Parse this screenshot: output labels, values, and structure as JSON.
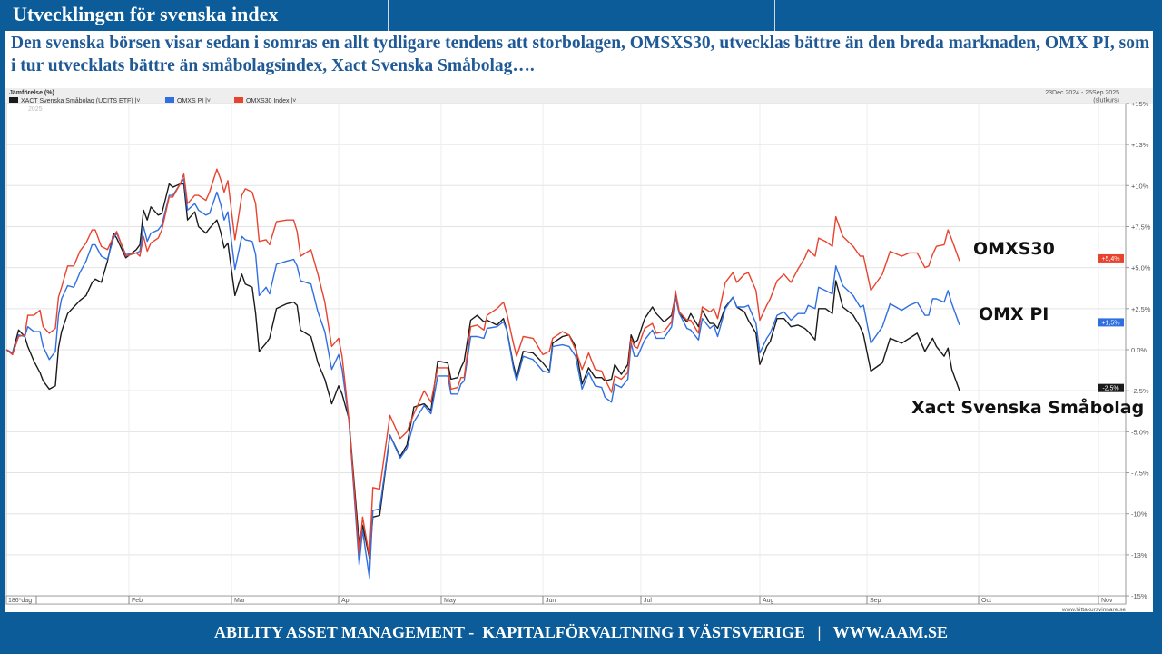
{
  "header": {
    "title": "Utvecklingen för svenska index"
  },
  "subtitle": "Den svenska börsen visar sedan i somras en allt tydligare tendens att storbolagen, OMSXS30, utvecklas bättre än den breda marknaden, OMX PI, som i tur utvecklats bättre än småbolagsindex, Xact Svenska Småbolag….",
  "annotations": {
    "omxs30": "OMXS30",
    "omxpi": "OMX PI",
    "xact": "Xact Svenska Småbolag"
  },
  "footer": {
    "text": "ABILITY ASSET MANAGEMENT -  KAPITALFÖRVALTNING I VÄSTSVERIGE   |   WWW.AAM.SE"
  },
  "chart_data": {
    "type": "line",
    "title": "Jämförelse (%)",
    "year_label": "2025",
    "period": "23Dec 2024 - 25Sep 2025",
    "period_note": "(slutkurs)",
    "period_days_label": "186*dag",
    "source": "www.hittakursvinnare.se",
    "x_tick_labels": [
      "Feb",
      "Mar",
      "Apr",
      "May",
      "Jun",
      "Jul",
      "Aug",
      "Sep",
      "Oct",
      "Nov"
    ],
    "y_ticks": [
      15,
      12.5,
      10,
      7.5,
      5,
      2.5,
      0,
      -2.5,
      -5,
      -7.5,
      -10,
      -12.5,
      -15
    ],
    "y_tick_labels": [
      "+15%",
      "+13%",
      "+10%",
      "+7.5%",
      "+5.0%",
      "+2.5%",
      "0.0%",
      "-2.5%",
      "-5.0%",
      "-7.5%",
      "-10%",
      "-13%",
      "-15%"
    ],
    "ylim": [
      -15,
      15
    ],
    "grid": true,
    "legend_position": "top-left",
    "x": [
      "2024-12-23",
      "2024-12-25",
      "2024-12-27",
      "2024-12-29",
      "2024-12-30",
      "2025-01-01",
      "2025-01-03",
      "2025-01-04",
      "2025-01-06",
      "2025-01-08",
      "2025-01-09",
      "2025-01-10",
      "2025-01-12",
      "2025-01-14",
      "2025-01-16",
      "2025-01-18",
      "2025-01-20",
      "2025-01-21",
      "2025-01-23",
      "2025-01-25",
      "2025-01-27",
      "2025-01-28",
      "2025-01-31",
      "2025-02-03",
      "2025-02-04",
      "2025-02-05",
      "2025-02-06",
      "2025-02-07",
      "2025-02-09",
      "2025-02-10",
      "2025-02-12",
      "2025-02-13",
      "2025-02-15",
      "2025-02-16",
      "2025-02-17",
      "2025-02-19",
      "2025-02-20",
      "2025-02-22",
      "2025-02-23",
      "2025-02-25",
      "2025-02-26",
      "2025-02-27",
      "2025-02-28",
      "2025-03-02",
      "2025-03-04",
      "2025-03-05",
      "2025-03-07",
      "2025-03-08",
      "2025-03-09",
      "2025-03-11",
      "2025-03-12",
      "2025-03-14",
      "2025-03-17",
      "2025-03-19",
      "2025-03-20",
      "2025-03-21",
      "2025-03-24",
      "2025-03-26",
      "2025-03-28",
      "2025-03-30",
      "2025-04-01",
      "2025-04-02",
      "2025-04-04",
      "2025-04-07",
      "2025-04-08",
      "2025-04-10",
      "2025-04-11",
      "2025-04-13",
      "2025-04-16",
      "2025-04-19",
      "2025-04-21",
      "2025-04-23",
      "2025-04-26",
      "2025-04-28",
      "2025-04-30",
      "2025-05-03",
      "2025-05-04",
      "2025-05-06",
      "2025-05-07",
      "2025-05-08",
      "2025-05-10",
      "2025-05-12",
      "2025-05-14",
      "2025-05-15",
      "2025-05-18",
      "2025-05-20",
      "2025-05-21",
      "2025-05-23",
      "2025-05-24",
      "2025-05-26",
      "2025-05-29",
      "2025-06-01",
      "2025-06-03",
      "2025-06-04",
      "2025-06-07",
      "2025-06-09",
      "2025-06-11",
      "2025-06-13",
      "2025-06-15",
      "2025-06-17",
      "2025-06-19",
      "2025-06-20",
      "2025-06-22",
      "2025-06-23",
      "2025-06-25",
      "2025-06-27",
      "2025-06-28",
      "2025-06-29",
      "2025-06-30",
      "2025-07-02",
      "2025-07-04",
      "2025-07-05",
      "2025-07-07",
      "2025-07-09",
      "2025-07-10",
      "2025-07-11",
      "2025-07-13",
      "2025-07-14",
      "2025-07-16",
      "2025-07-17",
      "2025-07-19",
      "2025-07-20",
      "2025-07-21",
      "2025-07-23",
      "2025-07-25",
      "2025-07-26",
      "2025-07-28",
      "2025-07-29",
      "2025-07-31",
      "2025-08-01",
      "2025-08-03",
      "2025-08-04",
      "2025-08-06",
      "2025-08-08",
      "2025-08-10",
      "2025-08-12",
      "2025-08-14",
      "2025-08-15",
      "2025-08-17",
      "2025-08-18",
      "2025-08-20",
      "2025-08-22",
      "2025-08-23",
      "2025-08-25",
      "2025-08-28",
      "2025-08-30",
      "2025-08-31",
      "2025-09-02",
      "2025-09-05",
      "2025-09-07",
      "2025-09-10",
      "2025-09-12",
      "2025-09-14",
      "2025-09-16",
      "2025-09-17",
      "2025-09-18",
      "2025-09-19",
      "2025-09-21",
      "2025-09-22",
      "2025-09-23",
      "2025-09-25"
    ],
    "series": [
      {
        "name": "XACT Svenska Småbolag (UCITS ETF)",
        "color": "#1a1a1a",
        "last_label": "-2,5%",
        "values": [
          0,
          -0.2,
          1.2,
          0.8,
          0.2,
          -0.7,
          -1.4,
          -1.9,
          -2.4,
          -2.2,
          0.1,
          1.1,
          2.2,
          2.6,
          3.0,
          3.3,
          4.1,
          4.3,
          4.1,
          5.4,
          7.1,
          6.8,
          5.6,
          6.1,
          6.4,
          8.5,
          7.9,
          8.7,
          8.2,
          8.3,
          10.1,
          9.9,
          10.1,
          10.1,
          7.9,
          8.4,
          7.5,
          7.1,
          7.4,
          7.9,
          7.2,
          6.2,
          6.5,
          3.3,
          4.6,
          4.0,
          3.8,
          2.2,
          -0.1,
          0.4,
          0.7,
          2.5,
          2.8,
          2.9,
          2.7,
          1.2,
          0.8,
          -0.8,
          -1.8,
          -3.3,
          -2.2,
          -2.7,
          -4.2,
          -11.8,
          -10.7,
          -12.7,
          -10.2,
          -10.1,
          -5.2,
          -6.5,
          -5.8,
          -3.5,
          -3.3,
          -3.7,
          -0.7,
          -0.8,
          -1.8,
          -1.7,
          -1.1,
          -0.7,
          1.8,
          2.1,
          1.7,
          1.8,
          1.5,
          1.9,
          1.2,
          -0.9,
          -1.7,
          -0.1,
          -0.2,
          -0.8,
          -1.3,
          0.4,
          0.8,
          0.9,
          0.2,
          -2.1,
          -1.1,
          -1.7,
          -1.7,
          -1.9,
          -1.8,
          -0.9,
          -1.5,
          -0.9,
          0.9,
          0.4,
          0.6,
          1.9,
          2.6,
          2.2,
          1.7,
          2.1,
          3.3,
          2.2,
          1.7,
          2.2,
          1.4,
          2.4,
          1.6,
          1.6,
          1.3,
          2.6,
          3.2,
          2.6,
          2.3,
          1.8,
          1.0,
          -0.9,
          0.2,
          0.5,
          1.9,
          1.9,
          1.4,
          1.5,
          1.3,
          1.1,
          0.6,
          2.5,
          2.5,
          2.2,
          4.2,
          2.6,
          2.1,
          1.4,
          0.9,
          -1.3,
          -0.8,
          0.7,
          0.4,
          0.7,
          1.0,
          -0.1,
          0.3,
          0.7,
          0.2,
          -0.4,
          0.1,
          -1.2,
          -2.5
        ]
      },
      {
        "name": "OMXS PI",
        "color": "#2f6fe0",
        "last_label": "+1,5%",
        "values": [
          0,
          -0.2,
          0.9,
          0.8,
          1.4,
          1.1,
          1.1,
          0.2,
          -0.6,
          -0.1,
          2.1,
          3.1,
          3.9,
          3.8,
          4.7,
          5.4,
          6.4,
          6.4,
          5.7,
          5.5,
          6.8,
          7.1,
          5.8,
          5.9,
          6.0,
          7.5,
          6.6,
          7.1,
          7.3,
          7.6,
          9.4,
          9.4,
          10.1,
          10.4,
          8.5,
          8.9,
          8.5,
          8.2,
          8.3,
          9.6,
          8.9,
          7.9,
          8.4,
          4.9,
          6.9,
          6.7,
          6.6,
          5.8,
          3.3,
          3.8,
          3.4,
          5.2,
          5.4,
          5.5,
          5.1,
          4.2,
          4.0,
          2.3,
          1.1,
          -1.2,
          -0.3,
          -1.2,
          -4.3,
          -13.1,
          -11.0,
          -13.9,
          -9.8,
          -9.7,
          -5.2,
          -6.6,
          -6.0,
          -4.4,
          -3.4,
          -3.9,
          -1.6,
          -1.6,
          -2.7,
          -2.7,
          -2.1,
          -1.9,
          0.8,
          0.8,
          0.7,
          1.3,
          1.4,
          1.7,
          1.2,
          -1.1,
          -1.9,
          -0.4,
          -0.6,
          -1.3,
          -1.4,
          0.2,
          0.3,
          0.2,
          -0.4,
          -2.4,
          -1.4,
          -2.2,
          -2.3,
          -2.9,
          -3.2,
          -2.1,
          -2.3,
          -1.8,
          0.4,
          -0.4,
          -0.4,
          0.6,
          1.2,
          0.7,
          0.7,
          1.4,
          3.2,
          2.2,
          1.3,
          1.2,
          0.6,
          1.9,
          1.3,
          1.5,
          0.8,
          2.5,
          3.2,
          2.6,
          2.6,
          2.7,
          1.6,
          -0.2,
          0.7,
          1.0,
          2.1,
          2.3,
          1.8,
          2.2,
          2.2,
          2.7,
          2.5,
          3.8,
          3.6,
          3.4,
          5.1,
          3.9,
          3.3,
          2.6,
          2.7,
          0.4,
          1.4,
          2.8,
          2.4,
          2.7,
          2.9,
          2.1,
          2.1,
          3.1,
          3.1,
          2.9,
          3.6,
          2.8,
          1.5
        ]
      },
      {
        "name": "OMXS30 Index",
        "color": "#e8432e",
        "last_label": "+5,4%",
        "values": [
          0,
          -0.3,
          0.8,
          0.9,
          2.1,
          2.1,
          2.4,
          1.4,
          1.0,
          1.3,
          3.2,
          3.8,
          5.1,
          5.1,
          6.0,
          6.5,
          7.3,
          7.3,
          6.3,
          6.1,
          6.9,
          7.2,
          5.7,
          5.9,
          5.7,
          6.9,
          6.0,
          6.5,
          6.8,
          7.3,
          9.3,
          9.3,
          10.1,
          10.7,
          8.9,
          9.4,
          9.4,
          9.1,
          9.6,
          11.0,
          10.4,
          9.6,
          10.3,
          6.7,
          9.4,
          9.8,
          9.6,
          8.9,
          6.6,
          6.7,
          6.4,
          7.8,
          7.9,
          7.9,
          7.2,
          5.7,
          6.1,
          4.6,
          2.9,
          0.2,
          0.7,
          -0.4,
          -4.2,
          -12.5,
          -10.2,
          -12.6,
          -8.4,
          -8.5,
          -4.0,
          -5.4,
          -5.0,
          -3.9,
          -2.5,
          -3.2,
          -1.1,
          -1.1,
          -2.4,
          -2.3,
          -1.7,
          -1.7,
          1.4,
          1.5,
          1.2,
          2.1,
          2.5,
          2.9,
          2.2,
          0.4,
          -0.4,
          0.8,
          0.7,
          -0.3,
          -0.1,
          0.7,
          1.1,
          0.9,
          0.0,
          -1.2,
          -0.2,
          -1.2,
          -1.3,
          -1.8,
          -2.6,
          -1.6,
          -1.8,
          -1.4,
          0.7,
          0.2,
          0.1,
          1.3,
          1.6,
          1.0,
          1.1,
          1.7,
          3.6,
          2.3,
          1.8,
          1.8,
          1.0,
          2.6,
          2.3,
          2.5,
          1.9,
          4.1,
          4.7,
          4.1,
          4.6,
          4.7,
          3.6,
          1.8,
          2.7,
          3.1,
          4.2,
          4.6,
          4.1,
          4.9,
          5.6,
          6.1,
          5.7,
          6.8,
          6.6,
          6.3,
          8.1,
          6.9,
          6.3,
          5.7,
          5.7,
          3.6,
          4.6,
          6.0,
          5.7,
          5.9,
          5.9,
          5.0,
          5.1,
          5.8,
          6.3,
          6.4,
          7.3,
          6.7,
          5.4
        ]
      }
    ]
  }
}
